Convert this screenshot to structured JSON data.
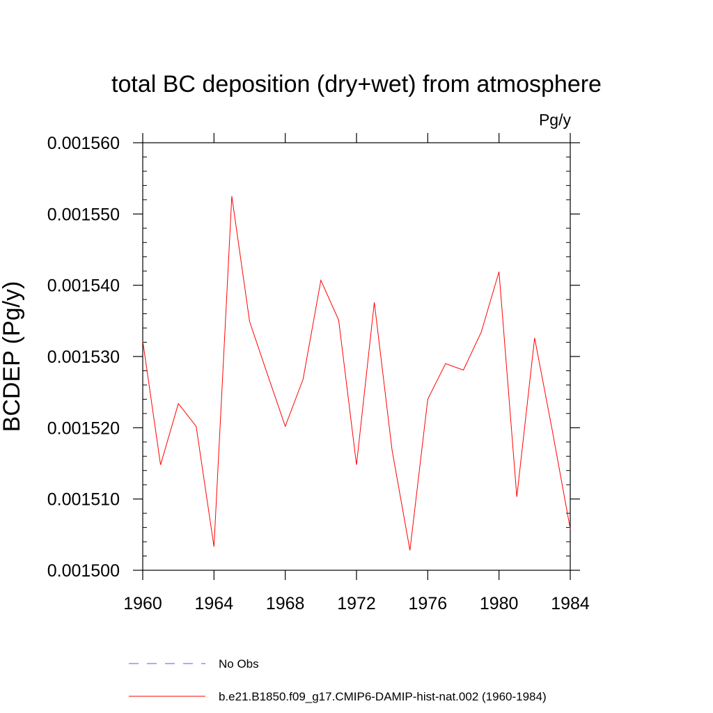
{
  "chart_data": {
    "type": "line",
    "title": "total BC deposition (dry+wet) from atmosphere",
    "units_label": "Pg/y",
    "ylabel": "BCDEP  (Pg/y)",
    "xlabel": "",
    "xlim": [
      1960,
      1984
    ],
    "ylim": [
      0.0015,
      0.00156
    ],
    "x_ticks": [
      1960,
      1964,
      1968,
      1972,
      1976,
      1980,
      1984
    ],
    "x_tick_labels": [
      "1960",
      "1964",
      "1968",
      "1972",
      "1976",
      "1980",
      "1984"
    ],
    "y_ticks": [
      0.0015,
      0.00151,
      0.00152,
      0.00153,
      0.00154,
      0.00155,
      0.00156
    ],
    "y_tick_labels": [
      "0.001500",
      "0.001510",
      "0.001520",
      "0.001530",
      "0.001540",
      "0.001550",
      "0.001560"
    ],
    "grid": false,
    "legend_position": "bottom",
    "x": [
      1960,
      1961,
      1962,
      1963,
      1964,
      1965,
      1966,
      1967,
      1968,
      1969,
      1970,
      1971,
      1972,
      1973,
      1974,
      1975,
      1976,
      1977,
      1978,
      1979,
      1980,
      1981,
      1982,
      1983,
      1984
    ],
    "series": [
      {
        "name": "b.e21.B1850.f09_g17.CMIP6-DAMIP-hist-nat.002 (1960-1984)",
        "color": "#ff0000",
        "values": [
          0.0015322,
          0.0015148,
          0.0015234,
          0.0015202,
          0.0015033,
          0.0015525,
          0.0015349,
          0.0015275,
          0.0015202,
          0.0015268,
          0.0015407,
          0.0015351,
          0.0015148,
          0.0015376,
          0.0015168,
          0.0015028,
          0.001524,
          0.001529,
          0.0015281,
          0.0015334,
          0.0015419,
          0.0015103,
          0.0015326,
          0.0015195,
          0.0015058
        ]
      }
    ],
    "legend": [
      {
        "label": "No Obs",
        "color": "#5a5ad6",
        "style": "dashed"
      },
      {
        "label": "b.e21.B1850.f09_g17.CMIP6-DAMIP-hist-nat.002 (1960-1984)",
        "color": "#ff0000",
        "style": "solid"
      }
    ]
  }
}
